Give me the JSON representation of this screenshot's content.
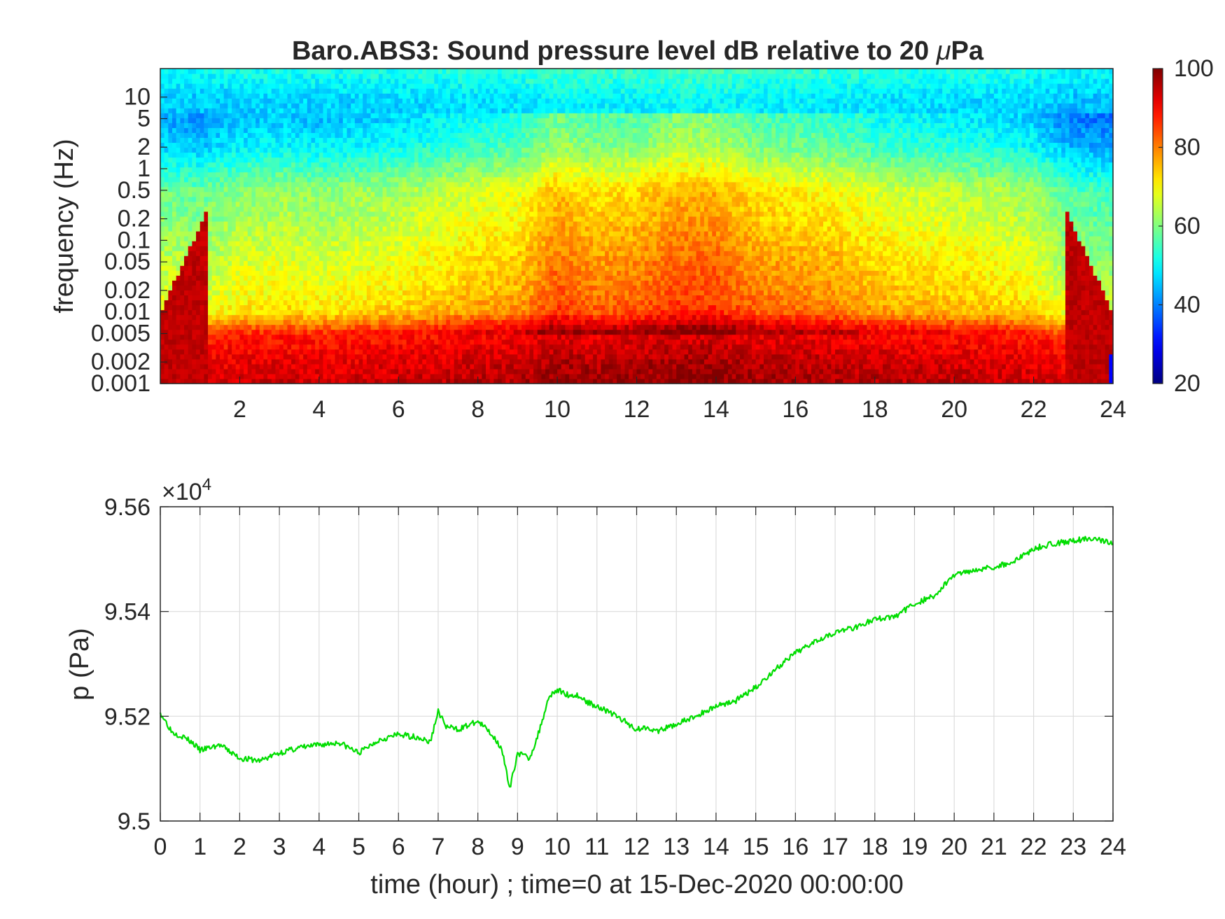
{
  "chart_data": [
    {
      "type": "heatmap",
      "title": "Baro.ABS3: Sound pressure level dB relative to 20 μPa",
      "title_parts": [
        "Baro.ABS3: Sound pressure level dB relative to 20 ",
        "μ",
        "Pa"
      ],
      "xlabel": "",
      "ylabel": "frequency (Hz)",
      "xlim": [
        0,
        24
      ],
      "x_ticks": [
        2,
        4,
        6,
        8,
        10,
        12,
        14,
        16,
        18,
        20,
        22,
        24
      ],
      "y_scale": "log",
      "ylim": [
        0.001,
        25
      ],
      "y_ticks": [
        0.001,
        0.002,
        0.005,
        0.01,
        0.02,
        0.05,
        0.1,
        0.2,
        0.5,
        1,
        2,
        5,
        10
      ],
      "y_tick_labels": [
        "0.001",
        "0.002",
        "0.005",
        "0.01",
        "0.02",
        "0.05",
        "0.1",
        "0.2",
        "0.5",
        "1",
        "2",
        "5",
        "10"
      ],
      "colormap": "jet",
      "clim": [
        20,
        100
      ],
      "colorbar_ticks": [
        20,
        40,
        60,
        80,
        100
      ],
      "colorbar_position": "right",
      "level_profile": {
        "freq_hz": [
          0.001,
          0.002,
          0.005,
          0.01,
          0.02,
          0.05,
          0.1,
          0.2,
          0.5,
          1,
          2,
          5,
          10,
          25
        ],
        "db_typical": [
          94,
          92,
          88,
          73,
          70,
          68,
          66,
          64,
          62,
          56,
          50,
          46,
          47,
          52
        ]
      },
      "activity": {
        "time_hour": [
          0,
          1,
          2,
          3,
          4,
          5,
          6,
          7,
          8,
          9,
          10,
          11,
          12,
          13,
          14,
          15,
          16,
          17,
          18,
          19,
          20,
          21,
          22,
          23,
          24
        ],
        "db_increase": [
          -3,
          -4,
          -1,
          0,
          -1,
          0,
          1,
          3,
          5,
          6,
          13,
          10,
          11,
          14,
          14,
          10,
          9,
          8,
          5,
          4,
          3,
          2,
          0,
          -6,
          -7
        ]
      }
    },
    {
      "type": "line",
      "xlabel": "time (hour) ; time=0 at 15-Dec-2020 00:00:00",
      "ylabel": "p (Pa)",
      "xlim": [
        0,
        24
      ],
      "x_ticks": [
        0,
        1,
        2,
        3,
        4,
        5,
        6,
        7,
        8,
        9,
        10,
        11,
        12,
        13,
        14,
        15,
        16,
        17,
        18,
        19,
        20,
        21,
        22,
        23,
        24
      ],
      "ylim": [
        9.5,
        9.56
      ],
      "y_ticks": [
        9.5,
        9.52,
        9.54,
        9.56
      ],
      "y_tick_labels": [
        "9.5",
        "9.52",
        "9.54",
        "9.56"
      ],
      "exponent_label": {
        "base": "×10",
        "power": "4"
      },
      "y_multiplier": 10000,
      "grid": true,
      "line_color": "#00dd00",
      "series": [
        {
          "x": [
            0,
            0.3,
            0.6,
            0.8,
            1.0,
            1.5,
            2.0,
            2.5,
            3.0,
            3.5,
            4.0,
            4.5,
            5.0,
            5.5,
            6.0,
            6.5,
            6.8,
            7.0,
            7.2,
            7.5,
            8.0,
            8.3,
            8.6,
            8.8,
            9.0,
            9.3,
            9.5,
            9.8,
            10.0,
            10.3,
            10.5,
            10.8,
            11.0,
            11.5,
            12.0,
            12.3,
            12.5,
            13.0,
            13.5,
            14.0,
            14.5,
            15.0,
            15.5,
            16.0,
            16.5,
            17.0,
            17.5,
            18.0,
            18.5,
            19.0,
            19.5,
            20.0,
            20.5,
            21.0,
            21.5,
            22.0,
            22.5,
            23.0,
            23.5,
            24.0
          ],
          "y": [
            95207,
            95170,
            95160,
            95150,
            95135,
            95145,
            95120,
            95115,
            95130,
            95140,
            95145,
            95150,
            95130,
            95155,
            95165,
            95160,
            95150,
            95210,
            95180,
            95175,
            95190,
            95170,
            95140,
            95060,
            95130,
            95120,
            95160,
            95240,
            95250,
            95240,
            95240,
            95225,
            95220,
            95200,
            95175,
            95180,
            95170,
            95185,
            95200,
            95220,
            95230,
            95255,
            95290,
            95320,
            95345,
            95360,
            95370,
            95385,
            95390,
            95415,
            95430,
            95470,
            95480,
            95485,
            95495,
            95520,
            95530,
            95535,
            95540,
            95530
          ]
        }
      ]
    }
  ]
}
